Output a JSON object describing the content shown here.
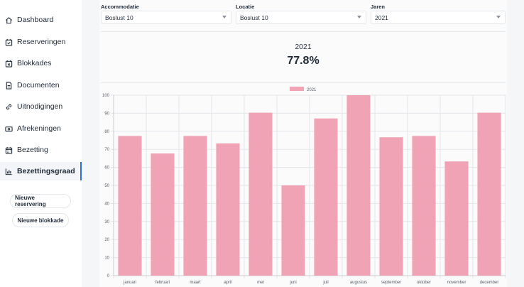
{
  "sidebar": {
    "items": [
      {
        "label": "Dashboard",
        "icon": "home-icon"
      },
      {
        "label": "Reserveringen",
        "icon": "calendar-check-icon"
      },
      {
        "label": "Blokkades",
        "icon": "calendar-x-icon"
      },
      {
        "label": "Documenten",
        "icon": "document-icon"
      },
      {
        "label": "Uitnodigingen",
        "icon": "link-icon"
      },
      {
        "label": "Afrekeningen",
        "icon": "money-icon"
      },
      {
        "label": "Bezetting",
        "icon": "calendar-icon"
      },
      {
        "label": "Bezettingsgraad",
        "icon": "bar-chart-icon"
      }
    ],
    "buttons": {
      "new_reservation": "Nieuwe reservering",
      "new_block": "Nieuwe blokkade"
    }
  },
  "filters": {
    "accommodation": {
      "label": "Accommodatie",
      "value": "Boslust 10"
    },
    "location": {
      "label": "Locatie",
      "value": "Boslust 10"
    },
    "years": {
      "label": "Jaren",
      "value": "2021"
    }
  },
  "summary": {
    "year": "2021",
    "value": "77.8%"
  },
  "chart_data": {
    "type": "bar",
    "categories": [
      "januari",
      "februari",
      "maart",
      "april",
      "mei",
      "juni",
      "juli",
      "augustus",
      "september",
      "oktober",
      "november",
      "december"
    ],
    "series": [
      {
        "name": "2021",
        "values": [
          77.4,
          67.7,
          77.4,
          73.3,
          90.3,
          50.0,
          87.1,
          100.0,
          76.7,
          77.4,
          63.3,
          90.3
        ]
      }
    ],
    "ylim": [
      0,
      100
    ],
    "yticks": [
      0,
      10,
      20,
      30,
      40,
      50,
      60,
      70,
      80,
      90,
      100
    ],
    "grid": true,
    "legend": "top-center",
    "bar_color": "#f0a3b5"
  }
}
